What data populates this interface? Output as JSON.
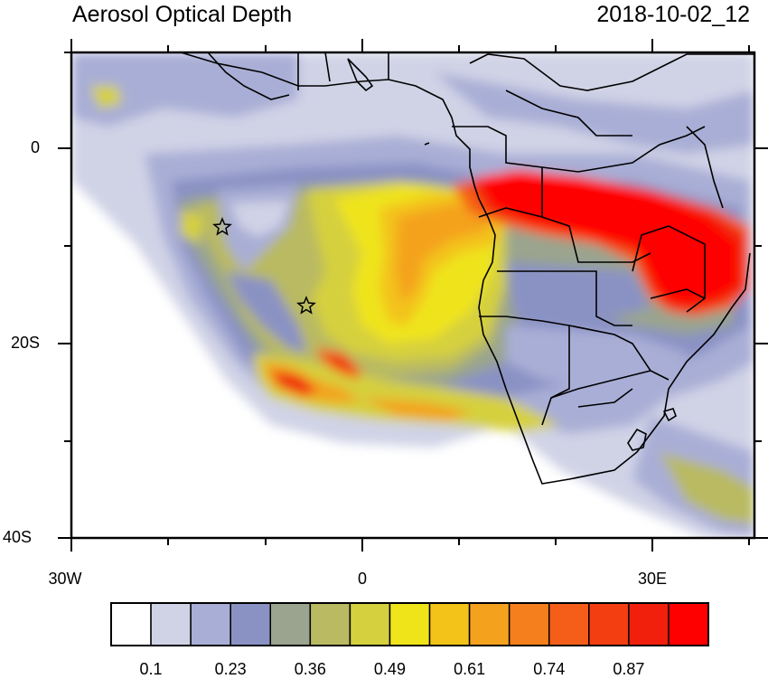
{
  "title": "Aerosol Optical Depth",
  "datetime": "2018-10-02_12",
  "lat_labels": [
    "0",
    "20S",
    "40S"
  ],
  "lon_labels": [
    "30W",
    "0",
    "30E"
  ],
  "colorbar": {
    "colors": [
      "#ffffff",
      "#d0d3e6",
      "#a9aed6",
      "#8a92c4",
      "#9aa48e",
      "#b9ba62",
      "#d5d03e",
      "#efe41a",
      "#f3c31a",
      "#f4a21e",
      "#f47f1c",
      "#f45e18",
      "#f33e12",
      "#f0200c",
      "#ff0000"
    ],
    "labels": [
      "0.1",
      "0.23",
      "0.36",
      "0.49",
      "0.61",
      "0.74",
      "0.87"
    ]
  }
}
